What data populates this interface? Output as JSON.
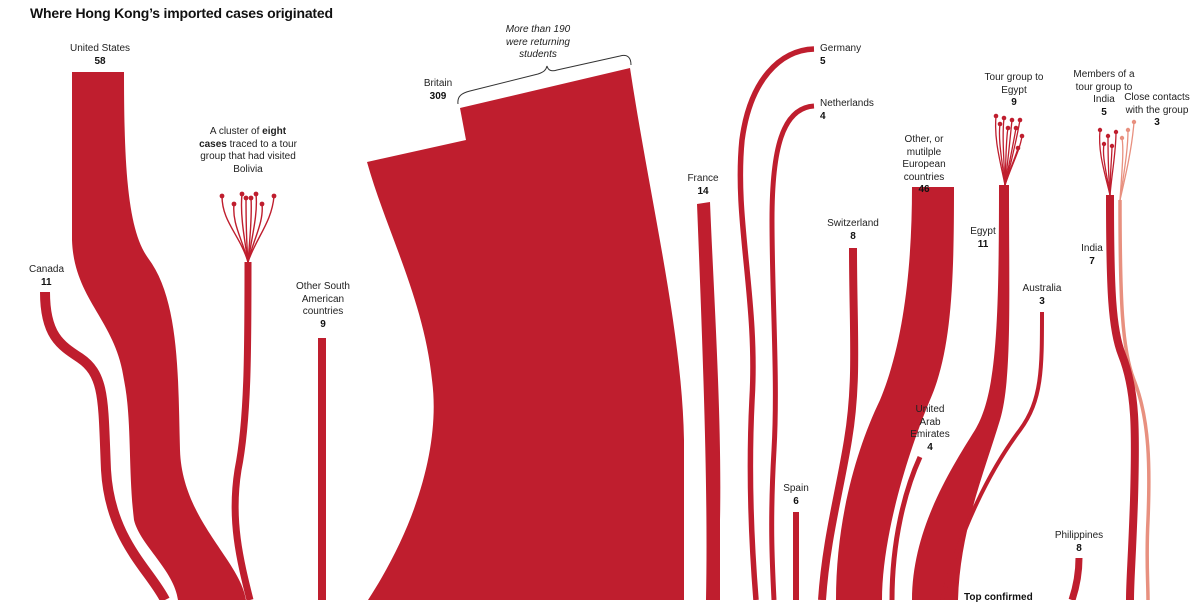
{
  "title": "Where Hong Kong’s imported cases originated",
  "colors": {
    "flow": "#bf1e2e",
    "light_flow": "#e8907f",
    "background": "#ffffff"
  },
  "nodes": [
    {
      "id": "united-states",
      "name": "United States",
      "value": "58"
    },
    {
      "id": "canada",
      "name": "Canada",
      "value": "11"
    },
    {
      "id": "other-south-american",
      "name": "Other South American countries",
      "value": "9"
    },
    {
      "id": "britain",
      "name": "Britain",
      "value": "309"
    },
    {
      "id": "france",
      "name": "France",
      "value": "14"
    },
    {
      "id": "germany",
      "name": "Germany",
      "value": "5"
    },
    {
      "id": "netherlands",
      "name": "Netherlands",
      "value": "4"
    },
    {
      "id": "switzerland",
      "name": "Switzerland",
      "value": "8"
    },
    {
      "id": "spain",
      "name": "Spain",
      "value": "6"
    },
    {
      "id": "other-european",
      "name": "Other, or mutilple European countries",
      "value": "46"
    },
    {
      "id": "uae",
      "name": "United Arab Emirates",
      "value": "4"
    },
    {
      "id": "egypt-tour",
      "name": "Tour group to Egypt",
      "value": "9"
    },
    {
      "id": "egypt",
      "name": "Egypt",
      "value": "11"
    },
    {
      "id": "australia",
      "name": "Australia",
      "value": "3"
    },
    {
      "id": "india-tour",
      "name": "Members of a tour group to India",
      "value": "5"
    },
    {
      "id": "close-contacts",
      "name": "Close contacts with the group",
      "value": "3"
    },
    {
      "id": "india",
      "name": "India",
      "value": "7"
    },
    {
      "id": "philippines",
      "name": "Philippines",
      "value": "8"
    }
  ],
  "annotations": {
    "bolivia_pre": "A cluster of ",
    "bolivia_bold": "eight cases",
    "bolivia_post": " traced to a tour group that had visited Bolivia",
    "students": "More than 190 were returning students",
    "bottom_cut": "Top confirmed"
  }
}
